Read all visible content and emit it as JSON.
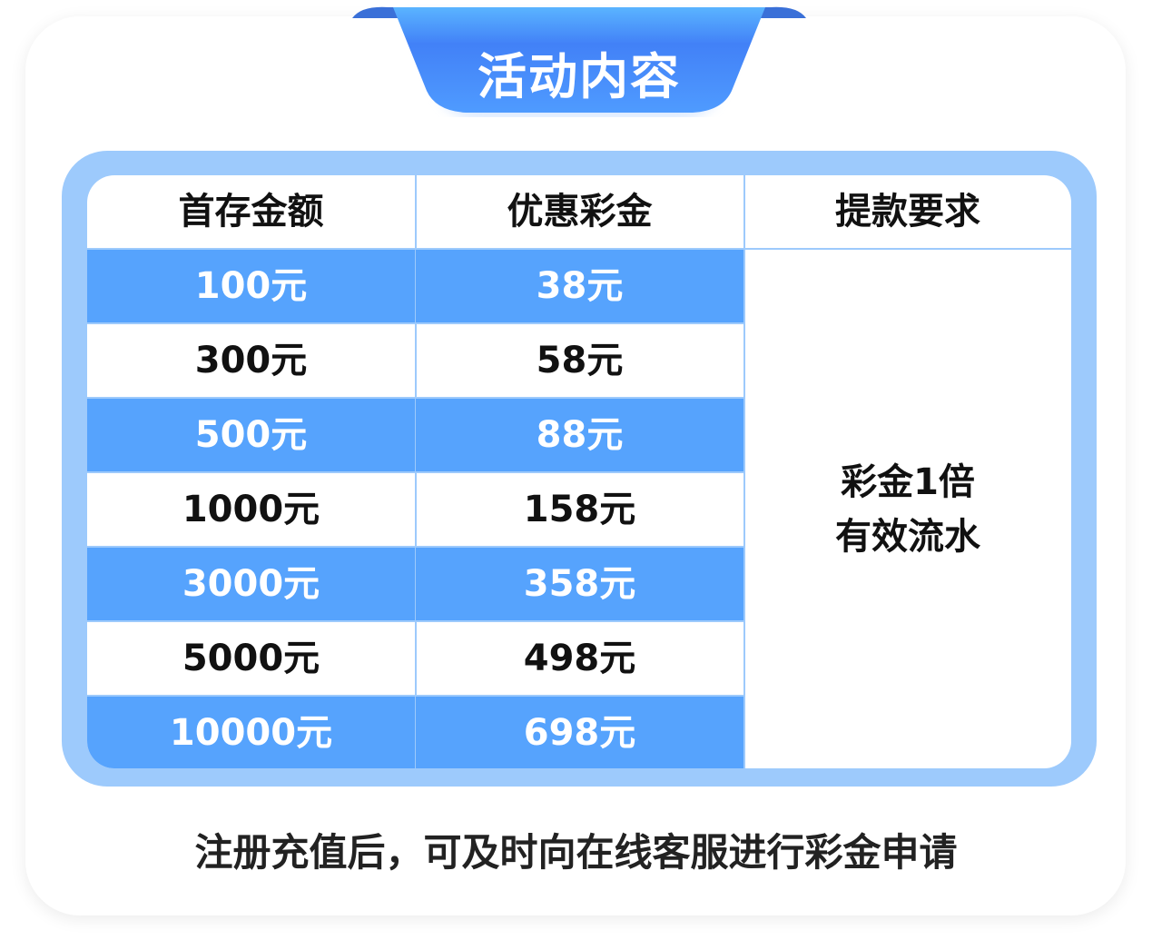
{
  "title": "活动内容",
  "colors": {
    "frame": "#9dcafc",
    "row_blue": "#56a3fd",
    "banner": "#4585f8"
  },
  "table": {
    "headers": [
      "首存金额",
      "优惠彩金",
      "提款要求"
    ],
    "rows": [
      {
        "deposit": "100元",
        "bonus": "38元"
      },
      {
        "deposit": "300元",
        "bonus": "58元"
      },
      {
        "deposit": "500元",
        "bonus": "88元"
      },
      {
        "deposit": "1000元",
        "bonus": "158元"
      },
      {
        "deposit": "3000元",
        "bonus": "358元"
      },
      {
        "deposit": "5000元",
        "bonus": "498元"
      },
      {
        "deposit": "10000元",
        "bonus": "698元"
      }
    ],
    "requirement": {
      "line1": "彩金1倍",
      "line2": "有效流水"
    }
  },
  "note": "注册充值后，可及时向在线客服进行彩金申请"
}
